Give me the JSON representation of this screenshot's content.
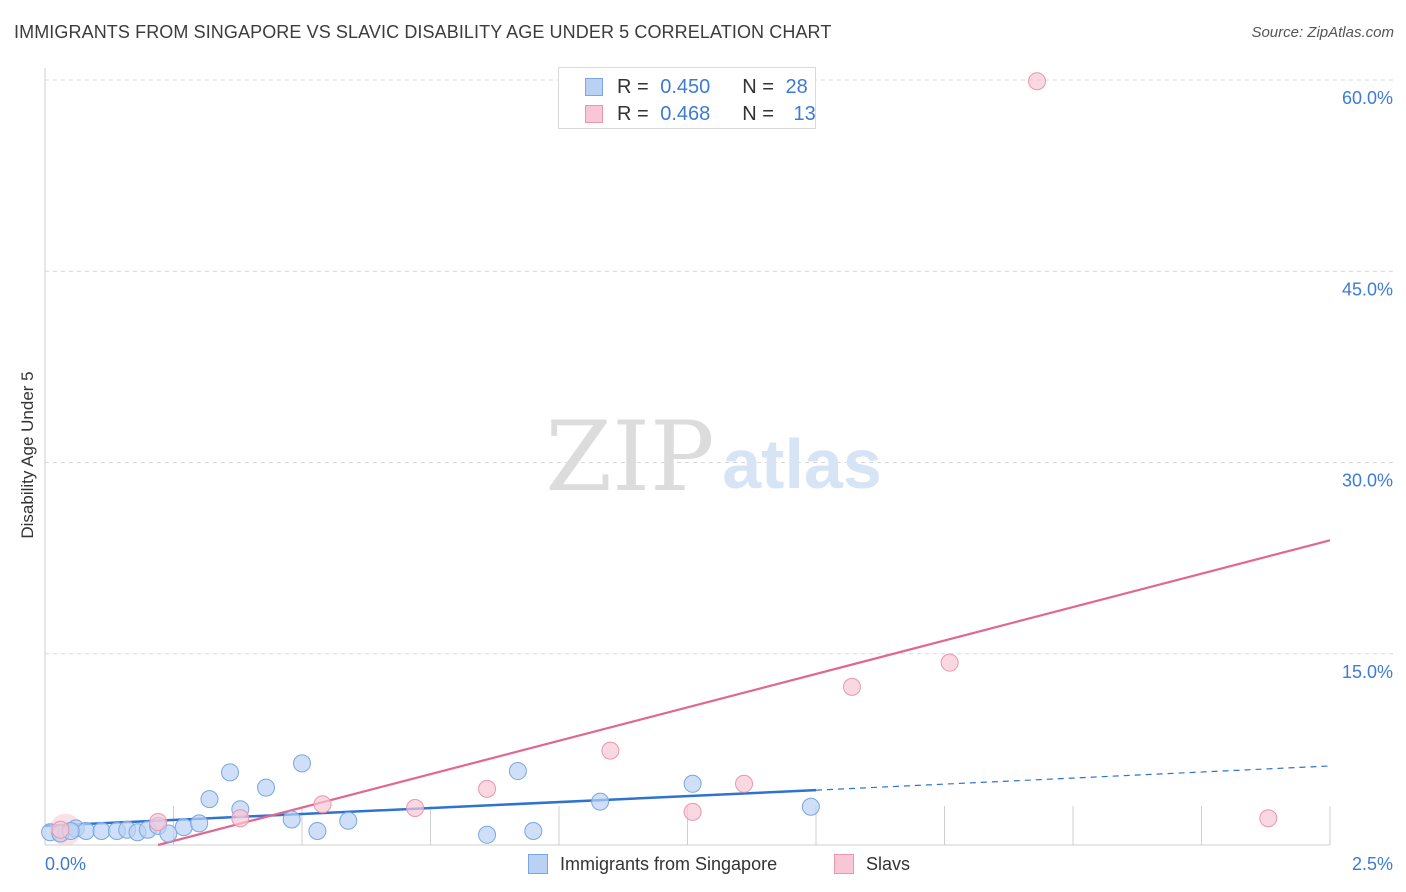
{
  "header": {
    "title": "IMMIGRANTS FROM SINGAPORE VS SLAVIC DISABILITY AGE UNDER 5 CORRELATION CHART",
    "source": "Source: ZipAtlas.com"
  },
  "watermark": {
    "zip": "ZIP",
    "atlas": "atlas"
  },
  "colors": {
    "blue_fill": "#b9d1f3",
    "blue_stroke": "#7aa6e3",
    "blue_line": "#2f73d0",
    "pink_fill": "#f8c7d5",
    "pink_stroke": "#eb95ae",
    "pink_line": "#e0688e",
    "tick_label": "#3d7bd4"
  },
  "legend": {
    "rows": [
      {
        "r_label": "R =",
        "r_value": "0.450",
        "n_label": "N =",
        "n_value": "28"
      },
      {
        "r_label": "R =",
        "r_value": "0.468",
        "n_label": "N =",
        "n_value": "13"
      }
    ],
    "bottom": [
      "Immigrants from Singapore",
      "Slavs"
    ]
  },
  "chart_data": {
    "type": "scatter",
    "title": "IMMIGRANTS FROM SINGAPORE VS SLAVIC DISABILITY AGE UNDER 5 CORRELATION CHART",
    "ylabel": "Disability Age Under 5",
    "xlabel": "",
    "xlim": [
      0,
      2.5
    ],
    "ylim": [
      0,
      60
    ],
    "x_tick_labels": [
      "0.0%",
      "2.5%"
    ],
    "y_ticks": [
      15,
      30,
      45,
      60
    ],
    "y_tick_labels": [
      "15.0%",
      "30.0%",
      "45.0%",
      "60.0%"
    ],
    "series": [
      {
        "name": "Immigrants from Singapore",
        "color": "#7aa6e3",
        "r": 0.45,
        "n": 28,
        "points": [
          [
            0.01,
            1.0
          ],
          [
            0.03,
            0.9
          ],
          [
            0.06,
            1.3
          ],
          [
            0.08,
            1.1
          ],
          [
            0.11,
            1.1
          ],
          [
            0.14,
            1.1
          ],
          [
            0.16,
            1.2
          ],
          [
            0.18,
            1.0
          ],
          [
            0.2,
            1.2
          ],
          [
            0.22,
            1.5
          ],
          [
            0.24,
            0.9
          ],
          [
            0.27,
            1.4
          ],
          [
            0.3,
            1.7
          ],
          [
            0.32,
            3.6
          ],
          [
            0.36,
            5.7
          ],
          [
            0.38,
            2.8
          ],
          [
            0.43,
            4.5
          ],
          [
            0.48,
            2.0
          ],
          [
            0.5,
            6.4
          ],
          [
            0.53,
            1.1
          ],
          [
            0.59,
            1.9
          ],
          [
            0.86,
            0.8
          ],
          [
            0.92,
            5.8
          ],
          [
            0.95,
            1.1
          ],
          [
            1.08,
            3.4
          ],
          [
            1.26,
            4.8
          ],
          [
            1.49,
            3.0
          ],
          [
            0.05,
            1.1
          ]
        ],
        "trend": {
          "x0": 0.0,
          "y0": 1.5,
          "x1": 1.5,
          "y1": 4.3,
          "dashed_to_x": 2.5,
          "dashed_to_y": 6.2
        }
      },
      {
        "name": "Slavs",
        "color": "#eb95ae",
        "r": 0.468,
        "n": 13,
        "points": [
          [
            0.03,
            1.2
          ],
          [
            0.22,
            1.8
          ],
          [
            0.38,
            2.1
          ],
          [
            0.54,
            3.2
          ],
          [
            0.72,
            2.9
          ],
          [
            0.86,
            4.4
          ],
          [
            1.1,
            7.4
          ],
          [
            1.26,
            2.6
          ],
          [
            1.36,
            4.8
          ],
          [
            1.57,
            12.4
          ],
          [
            1.76,
            14.3
          ],
          [
            1.93,
            59.9
          ],
          [
            2.38,
            2.1
          ]
        ],
        "trend": {
          "x0": 0.22,
          "y0": 0.0,
          "x1": 2.5,
          "y1": 23.9
        }
      }
    ]
  }
}
